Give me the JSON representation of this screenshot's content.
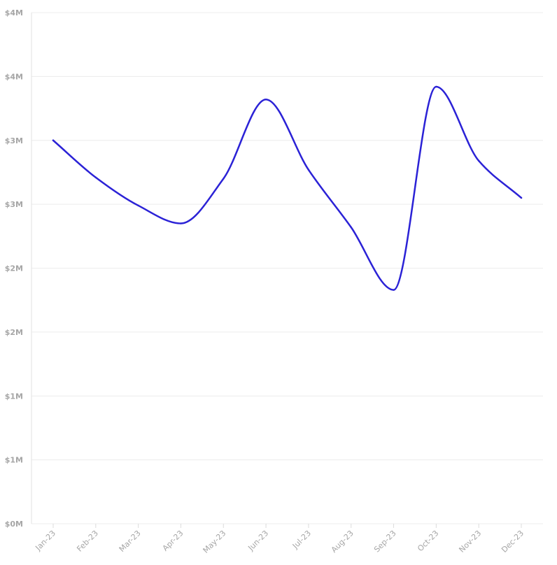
{
  "chart_data": {
    "type": "line",
    "title": "",
    "xlabel": "",
    "ylabel": "",
    "categories": [
      "Jan-23",
      "Feb-23",
      "Mar-23",
      "Apr-23",
      "May-23",
      "Jun-23",
      "Jul-23",
      "Aug-23",
      "Sep-23",
      "Oct-23",
      "Nov-23",
      "Dec-23"
    ],
    "series": [
      {
        "values": [
          3.0,
          2.71,
          2.49,
          2.35,
          2.7,
          3.32,
          2.77,
          2.32,
          1.83,
          3.42,
          2.84,
          2.55
        ]
      }
    ],
    "ylim": [
      0,
      4
    ],
    "y_ticks": [
      {
        "value": 0.0,
        "label": "$0M"
      },
      {
        "value": 0.5,
        "label": "$1M"
      },
      {
        "value": 1.0,
        "label": "$1M"
      },
      {
        "value": 1.5,
        "label": "$2M"
      },
      {
        "value": 2.0,
        "label": "$2M"
      },
      {
        "value": 2.5,
        "label": "$3M"
      },
      {
        "value": 3.0,
        "label": "$3M"
      },
      {
        "value": 3.5,
        "label": "$4M"
      },
      {
        "value": 4.0,
        "label": "$4M"
      }
    ],
    "grid": true,
    "legend": "none",
    "colors": {
      "line": "#2b22d6",
      "grid": "#ececec",
      "axis_text": "#a6a6a6"
    }
  }
}
